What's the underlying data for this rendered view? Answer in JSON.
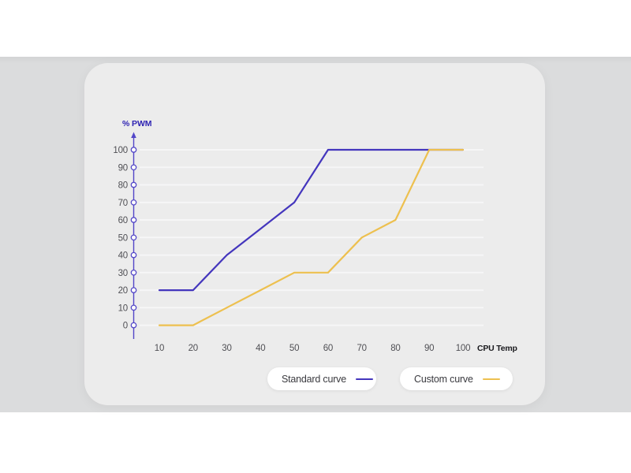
{
  "colors": {
    "page_bg": "#ffffff",
    "band_bg": "#dbdcdd",
    "card_bg": "#ececec",
    "gridline": "#f6f6f7",
    "axis": "#5347c8",
    "tick_label": "#505055",
    "axis_title": "#2f24b3",
    "x_axis_title": "#19191d",
    "legend_text": "#3a3a3f",
    "pill_bg": "#ffffff"
  },
  "chart_data": {
    "type": "line",
    "title": "",
    "ylabel": "% PWM",
    "xlabel": "CPU Temp",
    "x": [
      10,
      20,
      30,
      40,
      50,
      60,
      70,
      80,
      90,
      100
    ],
    "x_ticks": [
      10,
      20,
      30,
      40,
      50,
      60,
      70,
      80,
      90,
      100
    ],
    "y_ticks": [
      0,
      10,
      20,
      30,
      40,
      50,
      60,
      70,
      80,
      90,
      100
    ],
    "xlim": [
      10,
      100
    ],
    "ylim": [
      0,
      100
    ],
    "grid": true,
    "legend_position": "bottom",
    "series": [
      {
        "name": "Standard curve",
        "color": "#4436bd",
        "values": [
          20,
          20,
          40,
          55,
          70,
          100,
          100,
          100,
          100,
          100
        ]
      },
      {
        "name": "Custom curve",
        "color": "#edc04f",
        "values": [
          0,
          0,
          10,
          20,
          30,
          30,
          50,
          60,
          100,
          100
        ]
      }
    ]
  }
}
